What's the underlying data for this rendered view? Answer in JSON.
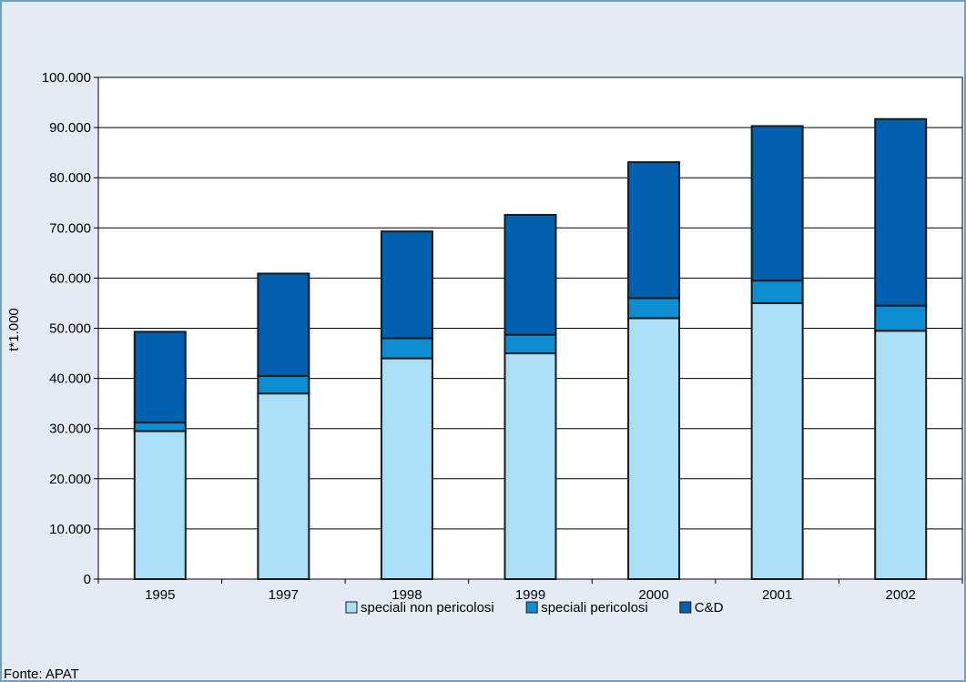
{
  "source": "Fonte: APAT",
  "colors": {
    "frame_background": "#e4ebf5",
    "frame_border": "#6f9fc6",
    "plot_background": "#ffffff",
    "gridline": "#000000"
  },
  "chart_data": {
    "type": "bar",
    "stacked": true,
    "title": "",
    "xlabel": "",
    "ylabel": "t*1.000",
    "ylim": [
      0,
      100000
    ],
    "y_ticks": [
      0,
      10000,
      20000,
      30000,
      40000,
      50000,
      60000,
      70000,
      80000,
      90000,
      100000
    ],
    "y_tick_labels": [
      "0",
      "10.000",
      "20.000",
      "30.000",
      "40.000",
      "50.000",
      "60.000",
      "70.000",
      "80.000",
      "90.000",
      "100.000"
    ],
    "grid": "horizontal",
    "legend": "bottom-center",
    "categories": [
      "1995",
      "1997",
      "1998",
      "1999",
      "2000",
      "2001",
      "2002"
    ],
    "series": [
      {
        "name": "speciali non pericolosi",
        "color": "#aadff7",
        "values": [
          29500,
          37000,
          44000,
          45000,
          52000,
          55000,
          49500
        ]
      },
      {
        "name": "speciali pericolosi",
        "color": "#0d8ed4",
        "values": [
          1700,
          3500,
          4000,
          3700,
          4000,
          4500,
          5000
        ]
      },
      {
        "name": "C&D",
        "color": "#0060b0",
        "values": [
          18100,
          20400,
          21300,
          23900,
          27100,
          30800,
          37200
        ]
      }
    ]
  }
}
